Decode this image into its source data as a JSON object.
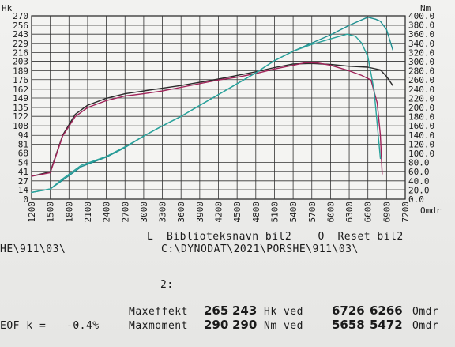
{
  "chart_data": {
    "type": "line",
    "xlabel": "Omdr",
    "xlim": [
      1200,
      7200
    ],
    "x_ticks": [
      1200,
      1500,
      1800,
      2100,
      2400,
      2700,
      3000,
      3300,
      3600,
      3900,
      4200,
      4500,
      4800,
      5100,
      5400,
      5700,
      6000,
      6300,
      6600,
      6900,
      7200
    ],
    "left_axis": {
      "label": "Hk",
      "ylim": [
        0,
        270
      ],
      "ticks": [
        0,
        14,
        27,
        41,
        54,
        68,
        81,
        94,
        108,
        122,
        135,
        149,
        162,
        176,
        189,
        203,
        216,
        229,
        243,
        256,
        270
      ]
    },
    "right_axis": {
      "label": "Nm",
      "ylim": [
        0,
        400
      ],
      "ticks": [
        "0.0",
        "20.0",
        "40.0",
        "60.0",
        "80.0",
        "100.0",
        "120.0",
        "140.0",
        "160.0",
        "180.0",
        "200.0",
        "220.0",
        "240.0",
        "260.0",
        "280.0",
        "300.0",
        "320.0",
        "340.0",
        "360.0",
        "380.0",
        "400.0"
      ]
    },
    "grid": true,
    "series": [
      {
        "color": "#2a2a2a",
        "axis": "right",
        "x": [
          1200,
          1500,
          1700,
          1900,
          2100,
          2400,
          2700,
          3000,
          3300,
          3600,
          3900,
          4200,
          4500,
          4800,
          5100,
          5400,
          5700,
          6000,
          6300,
          6600,
          6800,
          6900,
          7000
        ],
        "y": [
          50,
          60,
          140,
          185,
          205,
          220,
          230,
          236,
          242,
          248,
          255,
          262,
          270,
          278,
          287,
          295,
          296,
          294,
          290,
          288,
          282,
          268,
          248
        ]
      },
      {
        "color": "#a0245a",
        "axis": "right",
        "x": [
          1200,
          1500,
          1700,
          1900,
          2100,
          2400,
          2700,
          3000,
          3300,
          3600,
          3900,
          4200,
          4500,
          4800,
          5100,
          5400,
          5600,
          5800,
          6000,
          6300,
          6500,
          6650,
          6750,
          6800,
          6830
        ],
        "y": [
          50,
          58,
          138,
          180,
          200,
          215,
          225,
          230,
          236,
          244,
          252,
          260,
          266,
          274,
          284,
          292,
          298,
          297,
          292,
          280,
          270,
          260,
          210,
          140,
          55
        ]
      },
      {
        "color": "#1f8f90",
        "axis": "left",
        "x": [
          1200,
          1500,
          1700,
          2000,
          2400,
          2700,
          3000,
          3300,
          3600,
          3900,
          4200,
          4500,
          4800,
          5100,
          5400,
          5700,
          6000,
          6300,
          6600,
          6726,
          6800,
          6900,
          7000
        ],
        "y": [
          10,
          15,
          28,
          48,
          62,
          76,
          93,
          108,
          122,
          138,
          154,
          170,
          186,
          204,
          218,
          230,
          242,
          256,
          268,
          265,
          262,
          250,
          220
        ]
      },
      {
        "color": "#2aa39c",
        "axis": "left",
        "x": [
          1200,
          1500,
          1700,
          2000,
          2400,
          2700,
          3000,
          3300,
          3600,
          3900,
          4200,
          4500,
          4800,
          5100,
          5400,
          5700,
          6000,
          6266,
          6400,
          6500,
          6600,
          6700,
          6800
        ],
        "y": [
          10,
          15,
          30,
          50,
          63,
          77,
          93,
          108,
          122,
          138,
          154,
          170,
          186,
          204,
          218,
          228,
          236,
          243,
          240,
          230,
          210,
          160,
          60
        ]
      }
    ]
  },
  "footer": {
    "left_cut": "HE\\911\\03\\",
    "lib_line": "L  Biblioteksnavn bil2    O  Reset bil2",
    "path_line": "C:\\DYNODAT\\2021\\PORSHE\\911\\03\\",
    "slot_label": "2:",
    "eof_label": "EOF k =",
    "eof_value": "-0.4%",
    "maxeffekt_label": "Maxeffekt",
    "maxeffekt_v1": "265",
    "maxeffekt_v2": "243",
    "hk_ved": "Hk ved",
    "rpm_p1": "6726",
    "rpm_p2": "6266",
    "omdr1": "Omdr",
    "maxmoment_label": "Maxmoment",
    "maxmoment_v1": "290",
    "maxmoment_v2": "290",
    "nm_ved": "Nm ved",
    "rpm_t1": "5658",
    "rpm_t2": "5472",
    "omdr2": "Omdr"
  }
}
